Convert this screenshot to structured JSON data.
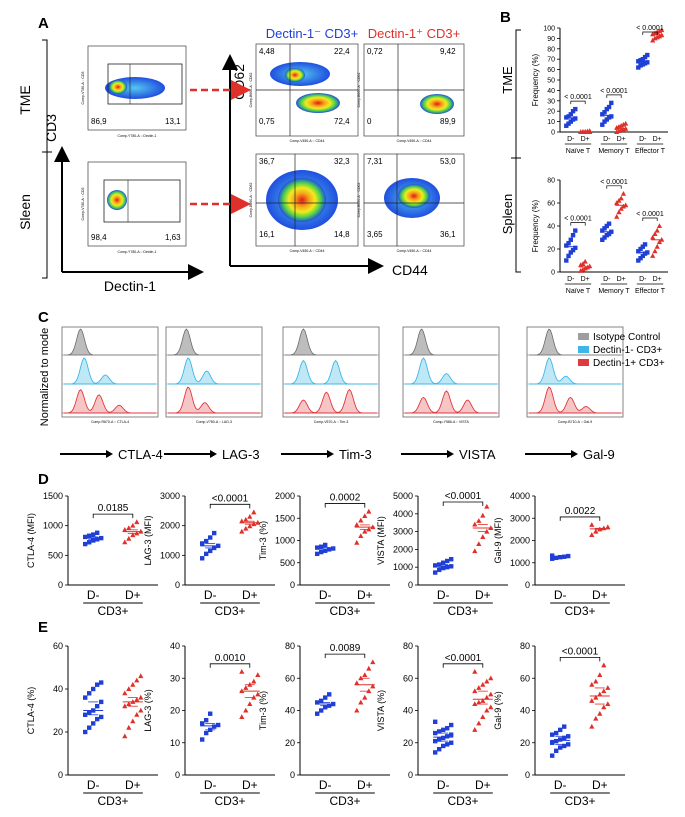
{
  "panel_letters": {
    "A": "A",
    "B": "B",
    "C": "C",
    "D": "D",
    "E": "E"
  },
  "panel_a": {
    "row_labels": [
      "TME",
      "Sleen"
    ],
    "y_axis_label": "CD3",
    "x_axis_label": "Dectin-1",
    "col_titles": [
      "Dectin-1⁻ CD3+",
      "Dectin-1⁺ CD3+"
    ],
    "cd62_label": "CD62",
    "cd44_label": "CD44",
    "gate_plots": [
      {
        "row": "TME",
        "left_value": "86,9",
        "right_value": "13,1",
        "x_text": "Comp-Y780-A :: Dectin-1",
        "y_text": "Comp-V780-A :: CD3"
      },
      {
        "row": "Sleen",
        "left_value": "98,4",
        "right_value": "1,63",
        "x_text": "Comp-Y780-A :: Dectin-1",
        "y_text": "Comp-V780-A :: CD3"
      }
    ],
    "quadrant_plots": [
      {
        "id": "tme-neg",
        "ul": "4,48",
        "ur": "22,4",
        "ll": "0,75",
        "lr": "72,4",
        "x_text": "Comp-V450-A :: CD44",
        "y_text": "Comp-B660-A :: CD62"
      },
      {
        "id": "tme-pos",
        "ul": "0,72",
        "ur": "9,42",
        "ll": "0",
        "lr": "89,9",
        "x_text": "Comp-V450-A :: CD44",
        "y_text": "Comp-B660-A :: CD62"
      },
      {
        "id": "spl-neg",
        "ul": "36,7",
        "ur": "32,3",
        "ll": "16,1",
        "lr": "14,8",
        "x_text": "Comp-V450-A :: CD44",
        "y_text": "Comp-B660-A :: CD62"
      },
      {
        "id": "spl-pos",
        "ul": "7,31",
        "ur": "53,0",
        "ll": "3,65",
        "lr": "36,1",
        "x_text": "Comp-V450-A :: CD44",
        "y_text": "Comp-B660-A :: CD62"
      }
    ]
  },
  "panel_c": {
    "y_label": "Normalized to mode",
    "legend": [
      {
        "label": "Isotype Control",
        "color": "#9e9e9e"
      },
      {
        "label": "Dectin-1- CD3+",
        "color": "#3fb7e6"
      },
      {
        "label": "Dectin-1+ CD3+",
        "color": "#e0393e"
      }
    ],
    "markers": [
      {
        "label": "CTLA-4",
        "x_text": "Comp-R670-A :: CTLA-4"
      },
      {
        "label": "LAG-3",
        "x_text": "Comp-V780-A :: LAG-3"
      },
      {
        "label": "Tim-3",
        "x_text": "Comp-V570-A :: Tim-3"
      },
      {
        "label": "VISTA",
        "x_text": "Comp-Y586-A :: VISTA"
      },
      {
        "label": "Gal-9",
        "x_text": "Comp-B710-A :: Gal-9"
      }
    ]
  },
  "colors": {
    "neg": "#1f3fd6",
    "pos": "#e0302a",
    "neg_title": "#1f3fd6",
    "pos_title": "#e0302a"
  },
  "chart_data": [
    {
      "id": "B-TME",
      "type": "scatter",
      "title": "TME",
      "ylabel": "Frequency (%)",
      "categories": [
        "Naïve T",
        "Memory T",
        "Effector T"
      ],
      "group_labels": [
        "D-",
        "D+"
      ],
      "ylim": [
        0,
        100
      ],
      "yticks": [
        0,
        10,
        20,
        30,
        40,
        50,
        60,
        70,
        80,
        90,
        100
      ],
      "series": [
        {
          "name": "D-",
          "color": "#1f3fd6",
          "values": [
            [
              6,
              8,
              10,
              12,
              13,
              14,
              15,
              17,
              20,
              22
            ],
            [
              7,
              10,
              12,
              14,
              15,
              17,
              19,
              22,
              24,
              28
            ],
            [
              62,
              64,
              65,
              66,
              67,
              68,
              69,
              70,
              72,
              74
            ]
          ]
        },
        {
          "name": "D+",
          "color": "#e0302a",
          "values": [
            [
              0,
              0,
              0,
              0,
              0,
              0,
              0.2,
              0.3,
              0.5,
              1
            ],
            [
              0,
              1,
              2,
              2,
              3,
              4,
              5,
              6,
              7,
              8
            ],
            [
              88,
              90,
              91,
              92,
              93,
              94,
              95,
              96,
              97,
              98
            ]
          ]
        }
      ],
      "pvalues": [
        "< 0.0001",
        "< 0.0001",
        "< 0.0001"
      ]
    },
    {
      "id": "B-Spleen",
      "type": "scatter",
      "title": "Spleen",
      "ylabel": "Frequency (%)",
      "categories": [
        "Naïve T",
        "Memory T",
        "Effector T"
      ],
      "group_labels": [
        "D-",
        "D+"
      ],
      "ylim": [
        0,
        80
      ],
      "yticks": [
        0,
        20,
        40,
        60,
        80
      ],
      "series": [
        {
          "name": "D-",
          "color": "#1f3fd6",
          "values": [
            [
              10,
              14,
              17,
              19,
              21,
              23,
              25,
              28,
              32,
              36
            ],
            [
              28,
              30,
              32,
              33,
              35,
              36,
              38,
              40,
              42
            ],
            [
              10,
              12,
              14,
              16,
              17,
              18,
              20,
              22,
              24
            ]
          ]
        },
        {
          "name": "D+",
          "color": "#e0302a",
          "values": [
            [
              1,
              2,
              3,
              4,
              5,
              6,
              7,
              9
            ],
            [
              48,
              52,
              55,
              57,
              58,
              60,
              62,
              64,
              68
            ],
            [
              14,
              18,
              22,
              26,
              28,
              30,
              33,
              36,
              40
            ]
          ]
        }
      ],
      "pvalues": [
        "< 0.0001",
        "< 0.0001",
        "< 0.0001"
      ]
    },
    {
      "id": "D-CTLA-4",
      "type": "scatter",
      "ylabel": "CTLA-4 (MFI)",
      "categories": [
        "D-",
        "D+"
      ],
      "group_label": "CD3+",
      "ylim": [
        0,
        1500
      ],
      "yticks": [
        0,
        500,
        1000,
        1500
      ],
      "pvalue": "0.0185",
      "series": [
        {
          "name": "D-",
          "color": "#1f3fd6",
          "values": [
            690,
            720,
            750,
            770,
            790,
            810,
            830,
            850,
            880
          ]
        },
        {
          "name": "D+",
          "color": "#e0302a",
          "values": [
            720,
            780,
            840,
            870,
            900,
            930,
            960,
            1000,
            1060
          ]
        }
      ]
    },
    {
      "id": "D-LAG-3",
      "type": "scatter",
      "ylabel": "LAG-3 (MFI)",
      "categories": [
        "D-",
        "D+"
      ],
      "group_label": "CD3+",
      "ylim": [
        0,
        3000
      ],
      "yticks": [
        0,
        1000,
        2000,
        3000
      ],
      "pvalue": "<0.0001",
      "series": [
        {
          "name": "D-",
          "color": "#1f3fd6",
          "values": [
            900,
            1050,
            1150,
            1250,
            1320,
            1400,
            1480,
            1600,
            1750
          ]
        },
        {
          "name": "D+",
          "color": "#e0302a",
          "values": [
            1800,
            1900,
            1980,
            2050,
            2100,
            2150,
            2200,
            2300,
            2450
          ]
        }
      ]
    },
    {
      "id": "D-Tim-3",
      "type": "scatter",
      "ylabel": "Tim-3 (%)",
      "categories": [
        "D-",
        "D+"
      ],
      "group_label": "CD3+",
      "ylim": [
        0,
        2000
      ],
      "yticks": [
        0,
        500,
        1000,
        1500,
        2000
      ],
      "pvalue": "0.0002",
      "series": [
        {
          "name": "D-",
          "color": "#1f3fd6",
          "values": [
            700,
            740,
            770,
            800,
            820,
            840,
            860,
            900
          ]
        },
        {
          "name": "D+",
          "color": "#e0302a",
          "values": [
            950,
            1100,
            1200,
            1250,
            1300,
            1350,
            1450,
            1550,
            1650
          ]
        }
      ]
    },
    {
      "id": "D-VISTA",
      "type": "scatter",
      "ylabel": "VISTA (MFI)",
      "categories": [
        "D-",
        "D+"
      ],
      "group_label": "CD3+",
      "ylim": [
        0,
        5000
      ],
      "yticks": [
        0,
        1000,
        2000,
        3000,
        4000,
        5000
      ],
      "pvalue": "<0.0001",
      "series": [
        {
          "name": "D-",
          "color": "#1f3fd6",
          "values": [
            700,
            850,
            950,
            1000,
            1050,
            1100,
            1150,
            1250,
            1350,
            1450
          ]
        },
        {
          "name": "D+",
          "color": "#e0302a",
          "values": [
            1900,
            2300,
            2700,
            3000,
            3200,
            3400,
            3600,
            3900,
            4400
          ]
        }
      ]
    },
    {
      "id": "D-Gal-9",
      "type": "scatter",
      "ylabel": "Gal-9 (MFI)",
      "categories": [
        "D-",
        "D+"
      ],
      "group_label": "CD3+",
      "ylim": [
        0,
        4000
      ],
      "yticks": [
        0,
        1000,
        2000,
        3000,
        4000
      ],
      "pvalue": "0.0022",
      "series": [
        {
          "name": "D-",
          "color": "#1f3fd6",
          "values": [
            1180,
            1220,
            1250,
            1270,
            1300,
            1320
          ]
        },
        {
          "name": "D+",
          "color": "#e0302a",
          "values": [
            2250,
            2400,
            2500,
            2550,
            2600,
            2700
          ]
        }
      ]
    },
    {
      "id": "E-CTLA-4",
      "type": "scatter",
      "ylabel": "CTLA-4 (%)",
      "categories": [
        "D-",
        "D+"
      ],
      "group_label": "CD3+",
      "ylim": [
        0,
        60
      ],
      "yticks": [
        0,
        20,
        40,
        60
      ],
      "pvalue": "",
      "series": [
        {
          "name": "D-",
          "color": "#1f3fd6",
          "values": [
            20,
            22,
            24,
            26,
            27,
            28,
            29,
            30,
            32,
            34,
            36,
            38,
            40,
            42,
            43
          ]
        },
        {
          "name": "D+",
          "color": "#e0302a",
          "values": [
            18,
            22,
            25,
            28,
            30,
            32,
            33,
            34,
            35,
            36,
            38,
            40,
            42,
            44,
            46
          ]
        }
      ]
    },
    {
      "id": "E-LAG-3",
      "type": "scatter",
      "ylabel": "LAG-3 (%)",
      "categories": [
        "D-",
        "D+"
      ],
      "group_label": "CD3+",
      "ylim": [
        0,
        40
      ],
      "yticks": [
        0,
        10,
        20,
        30,
        40
      ],
      "pvalue": "0.0010",
      "series": [
        {
          "name": "D-",
          "color": "#1f3fd6",
          "values": [
            11,
            13,
            14,
            15,
            15.5,
            16,
            17,
            19
          ]
        },
        {
          "name": "D+",
          "color": "#e0302a",
          "values": [
            18,
            20,
            22,
            24,
            25,
            26,
            27,
            28,
            29,
            31,
            32
          ]
        }
      ]
    },
    {
      "id": "E-Tim-3",
      "type": "scatter",
      "ylabel": "Tim-3 (%)",
      "categories": [
        "D-",
        "D+"
      ],
      "group_label": "CD3+",
      "ylim": [
        0,
        80
      ],
      "yticks": [
        0,
        20,
        40,
        60,
        80
      ],
      "pvalue": "0.0089",
      "series": [
        {
          "name": "D-",
          "color": "#1f3fd6",
          "values": [
            38,
            40,
            42,
            43,
            44,
            45,
            46,
            48,
            50
          ]
        },
        {
          "name": "D+",
          "color": "#e0302a",
          "values": [
            40,
            45,
            48,
            52,
            55,
            57,
            60,
            62,
            66,
            70
          ]
        }
      ]
    },
    {
      "id": "E-VISTA",
      "type": "scatter",
      "ylabel": "VISTA (%)",
      "categories": [
        "D-",
        "D+"
      ],
      "group_label": "CD3+",
      "ylim": [
        0,
        80
      ],
      "yticks": [
        0,
        20,
        40,
        60,
        80
      ],
      "pvalue": "<0.0001",
      "series": [
        {
          "name": "D-",
          "color": "#1f3fd6",
          "values": [
            14,
            16,
            18,
            19,
            20,
            21,
            22,
            23,
            24,
            25,
            26,
            27,
            28,
            29,
            31,
            33
          ]
        },
        {
          "name": "D+",
          "color": "#e0302a",
          "values": [
            28,
            32,
            36,
            40,
            42,
            44,
            45,
            46,
            48,
            50,
            52,
            54,
            56,
            58,
            60,
            64
          ]
        }
      ]
    },
    {
      "id": "E-Gal-9",
      "type": "scatter",
      "ylabel": "Gal-9 (%)",
      "categories": [
        "D-",
        "D+"
      ],
      "group_label": "CD3+",
      "ylim": [
        0,
        80
      ],
      "yticks": [
        0,
        20,
        40,
        60,
        80
      ],
      "pvalue": "<0.0001",
      "series": [
        {
          "name": "D-",
          "color": "#1f3fd6",
          "values": [
            12,
            15,
            17,
            18,
            19,
            20,
            21,
            22,
            23,
            24,
            25,
            26,
            28,
            30
          ]
        },
        {
          "name": "D+",
          "color": "#e0302a",
          "values": [
            30,
            35,
            38,
            42,
            44,
            46,
            48,
            50,
            52,
            54,
            56,
            58,
            62,
            68
          ]
        }
      ]
    }
  ]
}
